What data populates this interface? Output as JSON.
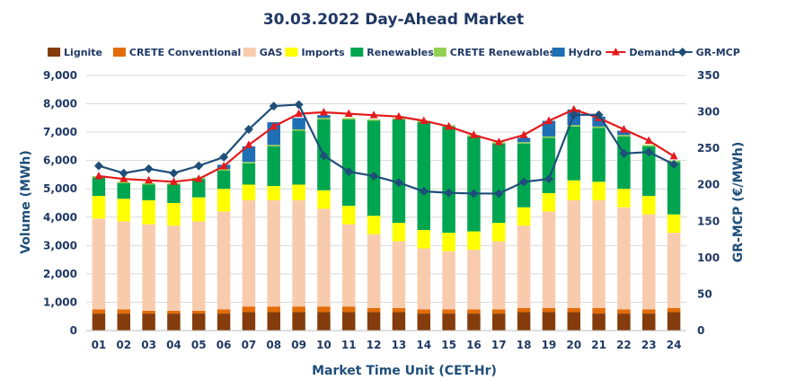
{
  "chart_data": {
    "type": "bar",
    "title": "30.03.2022  Day-Ahead Market",
    "xlabel": "Market Time Unit (CET-Hr)",
    "ylabel": "Volume (MWh)",
    "ylabel_right": "GR-MCP (€/MWh)",
    "ylim": [
      0,
      9000
    ],
    "ylim_right": [
      0,
      350
    ],
    "yticks": [
      "0",
      "1,000",
      "2,000",
      "3,000",
      "4,000",
      "5,000",
      "6,000",
      "7,000",
      "8,000",
      "9,000"
    ],
    "yticks_right": [
      "0",
      "50",
      "100",
      "150",
      "200",
      "250",
      "300",
      "350"
    ],
    "categories": [
      "01",
      "02",
      "03",
      "04",
      "05",
      "06",
      "07",
      "08",
      "09",
      "10",
      "11",
      "12",
      "13",
      "14",
      "15",
      "16",
      "17",
      "18",
      "19",
      "20",
      "21",
      "22",
      "23",
      "24"
    ],
    "stacked_series": [
      {
        "name": "Lignite",
        "color": "#843c0c",
        "values": [
          600,
          600,
          600,
          600,
          600,
          600,
          650,
          650,
          650,
          650,
          650,
          650,
          650,
          600,
          600,
          600,
          600,
          650,
          650,
          650,
          600,
          600,
          600,
          650
        ]
      },
      {
        "name": "CRETE Conventional",
        "color": "#e36c09",
        "values": [
          150,
          150,
          100,
          100,
          100,
          150,
          200,
          200,
          200,
          200,
          200,
          150,
          150,
          150,
          150,
          150,
          150,
          150,
          150,
          150,
          200,
          150,
          150,
          150
        ]
      },
      {
        "name": "GAS",
        "color": "#f8cbad",
        "values": [
          3200,
          3100,
          3050,
          3000,
          3150,
          3450,
          3750,
          3750,
          3750,
          3450,
          2900,
          2600,
          2350,
          2150,
          2050,
          2100,
          2400,
          2900,
          3400,
          3800,
          3800,
          3600,
          3350,
          2650
        ]
      },
      {
        "name": "Imports",
        "color": "#ffff00",
        "values": [
          800,
          800,
          850,
          800,
          850,
          800,
          550,
          500,
          550,
          650,
          650,
          650,
          650,
          650,
          650,
          650,
          650,
          650,
          650,
          700,
          650,
          650,
          650,
          650
        ]
      },
      {
        "name": "Renewables",
        "color": "#00a550",
        "values": [
          650,
          550,
          550,
          650,
          650,
          650,
          750,
          1400,
          1900,
          2500,
          3050,
          3350,
          3650,
          3800,
          3750,
          3350,
          2800,
          2250,
          1950,
          1900,
          1900,
          1850,
          1750,
          1850
        ]
      },
      {
        "name": "CRETE Renewables",
        "color": "#92d050",
        "values": [
          50,
          50,
          50,
          50,
          50,
          50,
          50,
          50,
          50,
          50,
          50,
          50,
          50,
          50,
          50,
          50,
          50,
          50,
          50,
          50,
          50,
          50,
          50,
          50
        ]
      },
      {
        "name": "Hydro",
        "color": "#1f6fb4",
        "values": [
          0,
          0,
          0,
          0,
          0,
          150,
          550,
          800,
          400,
          100,
          0,
          0,
          0,
          0,
          0,
          0,
          0,
          150,
          550,
          550,
          350,
          150,
          0,
          0
        ]
      }
    ],
    "line_series": [
      {
        "name": "Demand",
        "color": "#e41a1c",
        "marker": "triangle",
        "axis": "left",
        "values": [
          5450,
          5350,
          5300,
          5250,
          5350,
          5800,
          6550,
          7200,
          7650,
          7700,
          7650,
          7600,
          7550,
          7400,
          7200,
          6900,
          6650,
          6900,
          7400,
          7800,
          7500,
          7100,
          6700,
          6150
        ]
      },
      {
        "name": "GR-MCP",
        "color": "#1f4e79",
        "marker": "diamond",
        "axis": "right",
        "values": [
          226,
          216,
          222,
          216,
          226,
          238,
          276,
          308,
          310,
          240,
          218,
          212,
          203,
          191,
          189,
          188,
          188,
          204,
          208,
          296,
          296,
          243,
          245,
          228
        ]
      }
    ],
    "legend_position": "top",
    "grid": true
  }
}
